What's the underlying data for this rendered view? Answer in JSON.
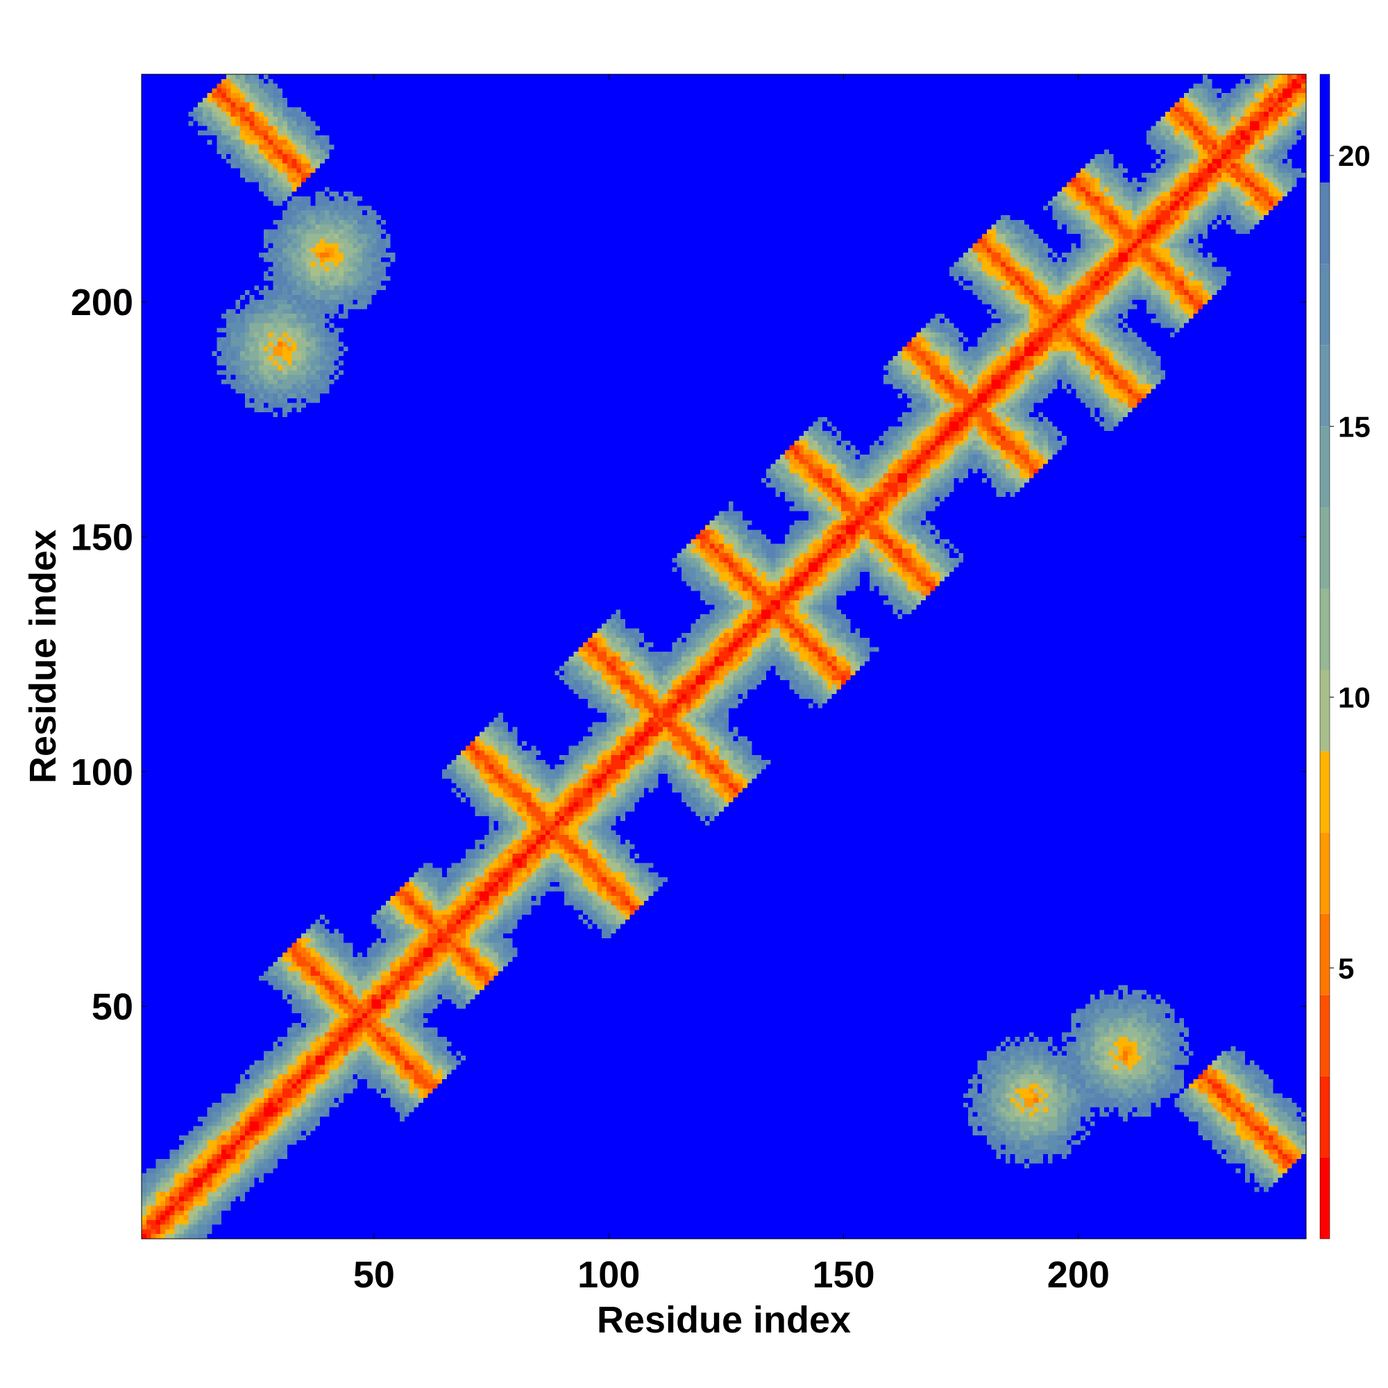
{
  "chart_data": {
    "type": "heatmap",
    "title": "",
    "xlabel": "Residue index",
    "ylabel": "Residue index",
    "n_residues": 248,
    "xlim": [
      1,
      248
    ],
    "ylim": [
      1,
      248
    ],
    "xticks": [
      50,
      100,
      150,
      200
    ],
    "yticks": [
      50,
      100,
      150,
      200
    ],
    "colorbar": {
      "range": [
        0,
        21.5
      ],
      "ticks": [
        5,
        10,
        15,
        20
      ],
      "levels": [
        {
          "max": 1.5,
          "color": "#ff0000"
        },
        {
          "max": 3.0,
          "color": "#ff2a00"
        },
        {
          "max": 4.5,
          "color": "#ff5000"
        },
        {
          "max": 6.0,
          "color": "#ff7700"
        },
        {
          "max": 7.5,
          "color": "#ff9a00"
        },
        {
          "max": 9.0,
          "color": "#ffb400"
        },
        {
          "max": 10.5,
          "color": "#a8bf8a"
        },
        {
          "max": 12.0,
          "color": "#96b894"
        },
        {
          "max": 13.5,
          "color": "#86ad9c"
        },
        {
          "max": 15.0,
          "color": "#77a2a4"
        },
        {
          "max": 16.5,
          "color": "#6a97ab"
        },
        {
          "max": 18.0,
          "color": "#5f8db0"
        },
        {
          "max": 19.5,
          "color": "#5883b3"
        },
        {
          "max": 21.5,
          "color": "#0000ff"
        }
      ]
    },
    "contact_features": [
      {
        "kind": "main-diagonal",
        "from": 1,
        "to": 248
      },
      {
        "kind": "antiparallel",
        "center": [
          65,
          65
        ],
        "half_length": 12
      },
      {
        "kind": "antiparallel",
        "center": [
          50,
          45
        ],
        "half_length": 22
      },
      {
        "kind": "antiparallel",
        "center": [
          88,
          88
        ],
        "half_length": 22
      },
      {
        "kind": "antiparallel",
        "center": [
          110,
          113
        ],
        "half_length": 18
      },
      {
        "kind": "antiparallel",
        "center": [
          137,
          133
        ],
        "half_length": 22
      },
      {
        "kind": "antiparallel",
        "center": [
          150,
          158
        ],
        "half_length": 14
      },
      {
        "kind": "antiparallel",
        "center": [
          175,
          180
        ],
        "half_length": 14
      },
      {
        "kind": "antiparallel",
        "center": [
          195,
          197
        ],
        "half_length": 20
      },
      {
        "kind": "antiparallel",
        "center": [
          215,
          210
        ],
        "half_length": 20
      },
      {
        "kind": "antiparallel",
        "center": [
          230,
          232
        ],
        "half_length": 12
      },
      {
        "kind": "antiparallel",
        "center": [
          26,
          236
        ],
        "half_length": 12
      },
      {
        "kind": "antiparallel",
        "center": [
          235,
          26
        ],
        "half_length": 12
      },
      {
        "kind": "cluster",
        "center": [
          190,
          30
        ]
      },
      {
        "kind": "cluster",
        "center": [
          30,
          190
        ]
      },
      {
        "kind": "cluster",
        "center": [
          210,
          40
        ]
      },
      {
        "kind": "cluster",
        "center": [
          40,
          210
        ]
      }
    ]
  }
}
